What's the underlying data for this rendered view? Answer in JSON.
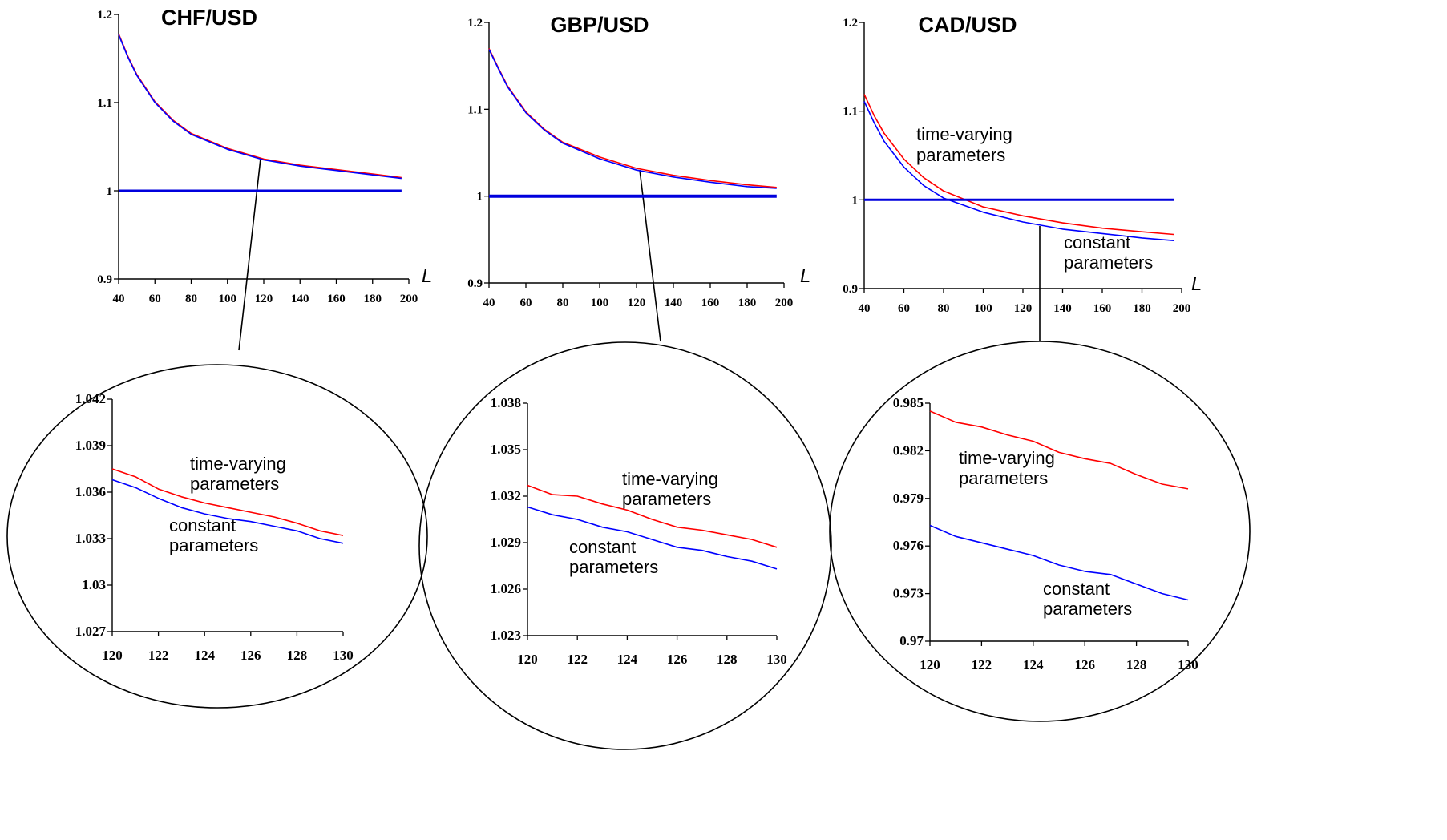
{
  "colors": {
    "time_varying": "#ff0000",
    "constant": "#0000ff",
    "reference": "#0000dd",
    "axis": "#000000"
  },
  "chart_data": [
    {
      "type": "line",
      "panel": "top",
      "title": "CHF/USD",
      "xlabel": "L",
      "ylabel": "",
      "xlim": [
        40,
        200
      ],
      "ylim": [
        0.9,
        1.2
      ],
      "xticks": [
        "40",
        "60",
        "80",
        "100",
        "120",
        "140",
        "160",
        "180",
        "200"
      ],
      "yticks": [
        "0.9",
        "1",
        "1.1",
        "1.2"
      ],
      "x": [
        40,
        45,
        50,
        60,
        70,
        80,
        100,
        120,
        140,
        160,
        180,
        196
      ],
      "series": [
        {
          "key": "time_varying",
          "values": [
            1.178,
            1.153,
            1.132,
            1.101,
            1.08,
            1.065,
            1.048,
            1.036,
            1.029,
            1.024,
            1.019,
            1.015
          ]
        },
        {
          "key": "constant",
          "values": [
            1.177,
            1.152,
            1.131,
            1.1,
            1.079,
            1.064,
            1.047,
            1.035,
            1.028,
            1.023,
            1.018,
            1.014
          ]
        },
        {
          "key": "reference",
          "values": [
            1,
            1,
            1,
            1,
            1,
            1,
            1,
            1,
            1,
            1,
            1,
            1
          ]
        }
      ],
      "annotations": []
    },
    {
      "type": "line",
      "panel": "top",
      "title": "GBP/USD",
      "xlabel": "L",
      "ylabel": "",
      "xlim": [
        40,
        200
      ],
      "ylim": [
        0.9,
        1.2
      ],
      "xticks": [
        "40",
        "60",
        "80",
        "100",
        "120",
        "140",
        "160",
        "180",
        "200"
      ],
      "yticks": [
        "0.9",
        "1",
        "1.1",
        "1.2"
      ],
      "x": [
        40,
        45,
        50,
        60,
        70,
        80,
        100,
        120,
        140,
        160,
        180,
        196
      ],
      "series": [
        {
          "key": "time_varying",
          "values": [
            1.17,
            1.148,
            1.127,
            1.097,
            1.077,
            1.062,
            1.045,
            1.032,
            1.024,
            1.018,
            1.013,
            1.01
          ]
        },
        {
          "key": "constant",
          "values": [
            1.169,
            1.147,
            1.126,
            1.096,
            1.076,
            1.061,
            1.043,
            1.03,
            1.022,
            1.016,
            1.011,
            1.009
          ]
        },
        {
          "key": "reference",
          "values": [
            1,
            1,
            1,
            1,
            1,
            1,
            1,
            1,
            1,
            1,
            1,
            1
          ]
        }
      ],
      "annotations": []
    },
    {
      "type": "line",
      "panel": "top",
      "title": "CAD/USD",
      "xlabel": "L",
      "ylabel": "",
      "xlim": [
        40,
        200
      ],
      "ylim": [
        0.9,
        1.2
      ],
      "xticks": [
        "40",
        "60",
        "80",
        "100",
        "120",
        "140",
        "160",
        "180",
        "200"
      ],
      "yticks": [
        "0.9",
        "1",
        "1.1",
        "1.2"
      ],
      "x": [
        40,
        45,
        50,
        60,
        70,
        80,
        100,
        120,
        140,
        160,
        180,
        196
      ],
      "series": [
        {
          "key": "time_varying",
          "values": [
            1.119,
            1.095,
            1.075,
            1.046,
            1.025,
            1.01,
            0.992,
            0.982,
            0.974,
            0.968,
            0.964,
            0.961
          ]
        },
        {
          "key": "constant",
          "values": [
            1.111,
            1.087,
            1.066,
            1.037,
            1.016,
            1.002,
            0.986,
            0.975,
            0.967,
            0.962,
            0.957,
            0.954
          ]
        },
        {
          "key": "reference",
          "values": [
            1,
            1,
            1,
            1,
            1,
            1,
            1,
            1,
            1,
            1,
            1,
            1
          ]
        }
      ],
      "annotations": [
        "time-varying",
        "parameters",
        "constant",
        "parameters"
      ]
    },
    {
      "type": "line",
      "panel": "zoom",
      "title": "",
      "xlabel": "",
      "ylabel": "",
      "xlim": [
        120,
        130
      ],
      "ylim": [
        1.027,
        1.042
      ],
      "xticks": [
        "120",
        "122",
        "124",
        "126",
        "128",
        "130"
      ],
      "yticks": [
        "1.027",
        "1.03",
        "1.033",
        "1.036",
        "1.039",
        "1.042"
      ],
      "x": [
        120,
        121,
        122,
        123,
        124,
        125,
        126,
        127,
        128,
        129,
        130
      ],
      "series": [
        {
          "key": "time_varying",
          "values": [
            1.0375,
            1.037,
            1.0362,
            1.0357,
            1.0353,
            1.035,
            1.0347,
            1.0344,
            1.034,
            1.0335,
            1.0332
          ]
        },
        {
          "key": "constant",
          "values": [
            1.0368,
            1.0363,
            1.0356,
            1.035,
            1.0346,
            1.0343,
            1.0341,
            1.0338,
            1.0335,
            1.033,
            1.0327
          ]
        }
      ],
      "annotations": [
        "time-varying",
        "parameters",
        "constant",
        "parameters"
      ]
    },
    {
      "type": "line",
      "panel": "zoom",
      "title": "",
      "xlabel": "",
      "ylabel": "",
      "xlim": [
        120,
        130
      ],
      "ylim": [
        1.023,
        1.038
      ],
      "xticks": [
        "120",
        "122",
        "124",
        "126",
        "128",
        "130"
      ],
      "yticks": [
        "1.023",
        "1.026",
        "1.029",
        "1.032",
        "1.035",
        "1.038"
      ],
      "x": [
        120,
        121,
        122,
        123,
        124,
        125,
        126,
        127,
        128,
        129,
        130
      ],
      "series": [
        {
          "key": "time_varying",
          "values": [
            1.0327,
            1.0321,
            1.032,
            1.0315,
            1.0311,
            1.0305,
            1.03,
            1.0298,
            1.0295,
            1.0292,
            1.0287
          ]
        },
        {
          "key": "constant",
          "values": [
            1.0313,
            1.0308,
            1.0305,
            1.03,
            1.0297,
            1.0292,
            1.0287,
            1.0285,
            1.0281,
            1.0278,
            1.0273
          ]
        }
      ],
      "annotations": [
        "time-varying",
        "parameters",
        "constant",
        "parameters"
      ]
    },
    {
      "type": "line",
      "panel": "zoom",
      "title": "",
      "xlabel": "",
      "ylabel": "",
      "xlim": [
        120,
        130
      ],
      "ylim": [
        0.97,
        0.985
      ],
      "xticks": [
        "120",
        "122",
        "124",
        "126",
        "128",
        "130"
      ],
      "yticks": [
        "0.97",
        "0.973",
        "0.976",
        "0.979",
        "0.982",
        "0.985"
      ],
      "x": [
        120,
        121,
        122,
        123,
        124,
        125,
        126,
        127,
        128,
        129,
        130
      ],
      "series": [
        {
          "key": "time_varying",
          "values": [
            0.9845,
            0.9838,
            0.9835,
            0.983,
            0.9826,
            0.9819,
            0.9815,
            0.9812,
            0.9805,
            0.9799,
            0.9796
          ]
        },
        {
          "key": "constant",
          "values": [
            0.9773,
            0.9766,
            0.9762,
            0.9758,
            0.9754,
            0.9748,
            0.9744,
            0.9742,
            0.9736,
            0.973,
            0.9726
          ]
        }
      ],
      "annotations": [
        "time-varying",
        "parameters",
        "constant",
        "parameters"
      ]
    }
  ]
}
